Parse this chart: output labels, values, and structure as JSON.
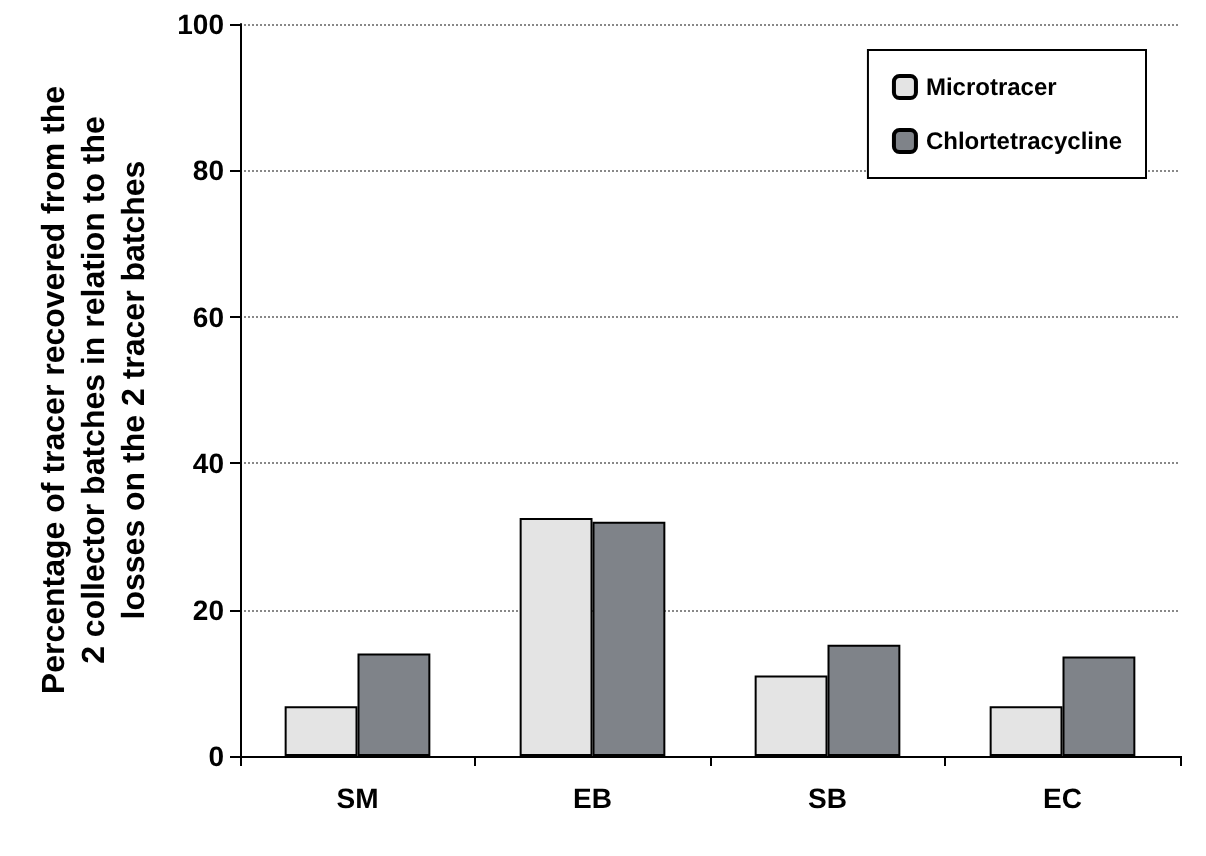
{
  "chart_data": {
    "type": "bar",
    "ylabel": "Percentage of tracer recovered from the\n2 collector batches in relation to the\nlosses on the 2 tracer batches",
    "categories": [
      "SM",
      "EB",
      "SB",
      "EC"
    ],
    "series": [
      {
        "name": "Microtracer",
        "color": "#e4e4e4",
        "values": [
          6.8,
          32.5,
          11,
          6.8
        ]
      },
      {
        "name": "Chlortetracycline",
        "color": "#7f8389",
        "values": [
          14,
          32,
          15.2,
          13.6
        ]
      }
    ],
    "ylim": [
      0,
      100
    ],
    "yticks": [
      0,
      20,
      40,
      60,
      80,
      100
    ],
    "grid": "y",
    "legend": "top right"
  }
}
